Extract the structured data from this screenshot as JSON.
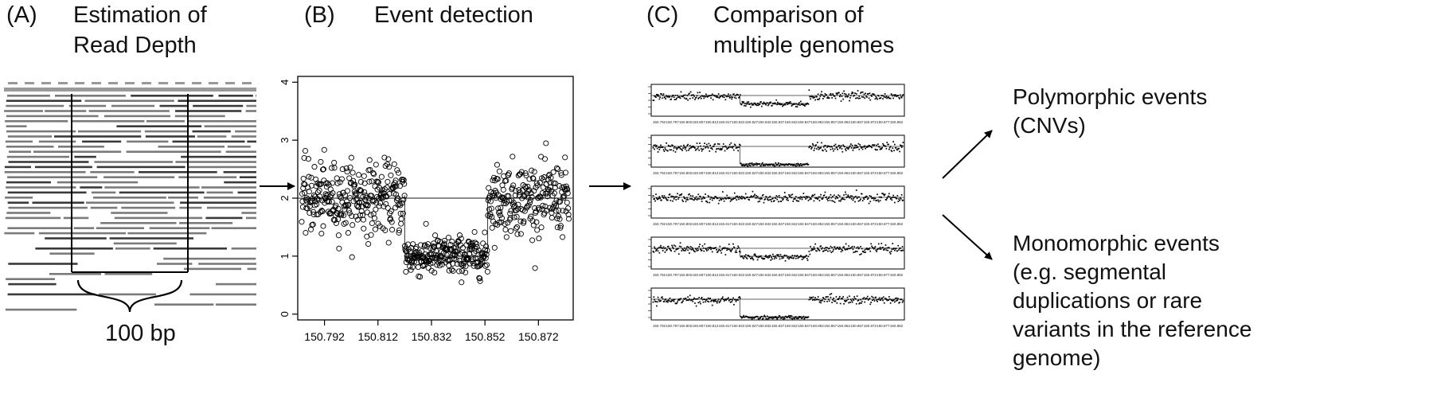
{
  "panels": {
    "a": {
      "tag": "(A)",
      "title_line1": "Estimation of",
      "title_line2": "Read Depth",
      "scale_label": "100 bp"
    },
    "b": {
      "tag": "(B)",
      "title": "Event detection"
    },
    "c": {
      "tag": "(C)",
      "title_line1": "Comparison of",
      "title_line2": "multiple genomes"
    }
  },
  "outcomes": {
    "polymorphic_line1": "Polymorphic events",
    "polymorphic_line2": "(CNVs)",
    "monomorphic_line1": "Monomorphic events",
    "monomorphic_line2": "(e.g. segmental",
    "monomorphic_line3": "duplications or rare",
    "monomorphic_line4": "variants in the reference",
    "monomorphic_line5": "genome)"
  },
  "chart_data": {
    "type": "scatter",
    "title": "",
    "xlabel": "",
    "ylabel": "",
    "x_ticks": [
      "150.792",
      "150.812",
      "150.832",
      "150.852",
      "150.872"
    ],
    "y_ticks": [
      "0",
      "1",
      "2",
      "3",
      "4"
    ],
    "xlim": [
      150.782,
      150.885
    ],
    "ylim": [
      -0.1,
      4.1
    ],
    "marker": "open-circle",
    "segments": [
      {
        "x_start": 150.782,
        "x_end": 150.822,
        "level": 2.0
      },
      {
        "x_start": 150.822,
        "x_end": 150.853,
        "level": 1.0
      },
      {
        "x_start": 150.853,
        "x_end": 150.885,
        "level": 2.0
      }
    ],
    "reference_line": {
      "level": 2.0,
      "x_start": 150.822,
      "x_end": 150.853
    }
  },
  "genome_panels": [
    {
      "profile": "deletion-heterozygous"
    },
    {
      "profile": "deletion-homozygous"
    },
    {
      "profile": "normal"
    },
    {
      "profile": "deletion-heterozygous"
    },
    {
      "profile": "deletion-homozygous"
    }
  ],
  "mini_x_ticks": [
    "150.792",
    "150.797",
    "150.802",
    "150.807",
    "150.812",
    "150.817",
    "150.822",
    "150.827",
    "150.832",
    "150.837",
    "150.842",
    "150.847",
    "150.852",
    "150.857",
    "150.862",
    "150.867",
    "150.872",
    "150.877",
    "150.882"
  ]
}
